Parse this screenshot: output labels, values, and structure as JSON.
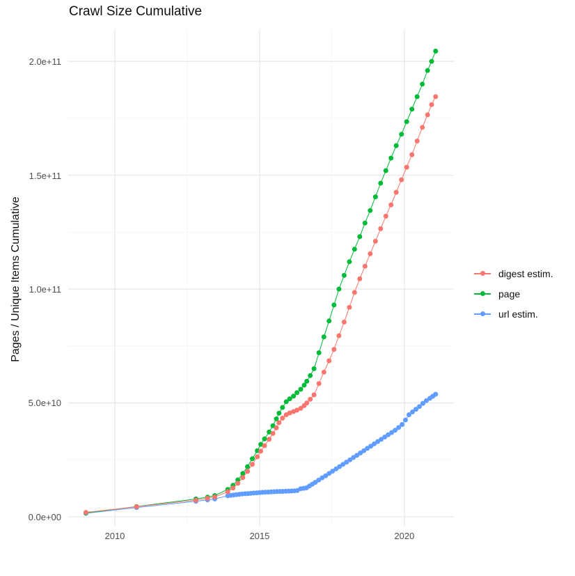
{
  "chart_data": {
    "type": "scatter",
    "title": "Crawl Size Cumulative",
    "xlabel": "",
    "ylabel": "Pages / Unique Items Cumulative",
    "legend_position": "right",
    "grid": true,
    "value_unit": "1e9 (values below are in billions; axis shows scientific notation)",
    "x_domain": [
      2008.39,
      2021.71
    ],
    "y_domain_e9": [
      -4.0,
      214.1
    ],
    "x_ticks": [
      {
        "value": 2010,
        "label": "2010"
      },
      {
        "value": 2015,
        "label": "2015"
      },
      {
        "value": 2020,
        "label": "2020"
      }
    ],
    "x_minor": [
      2012.5,
      2017.5
    ],
    "y_ticks": [
      {
        "value": 0,
        "label": "0.0e+00"
      },
      {
        "value": 50,
        "label": "5.0e+10"
      },
      {
        "value": 100,
        "label": "1.0e+11"
      },
      {
        "value": 150,
        "label": "1.5e+11"
      },
      {
        "value": 200,
        "label": "2.0e+11"
      }
    ],
    "y_minor": [
      25,
      75,
      125,
      175
    ],
    "colors": {
      "major_grid": "#e6e6e6",
      "minor_grid": "#f2f2f2",
      "axis_text": "#4d4d4d",
      "title_text": "#111111"
    },
    "series": [
      {
        "name": "digest estim.",
        "color": "#F8766D",
        "points": [
          [
            2009.0,
            1.9
          ],
          [
            2010.75,
            4.4
          ],
          [
            2012.8,
            7.3
          ],
          [
            2013.2,
            8.1
          ],
          [
            2013.45,
            8.7
          ],
          [
            2013.9,
            11.0
          ],
          [
            2014.08,
            12.6
          ],
          [
            2014.25,
            14.7
          ],
          [
            2014.42,
            17.2
          ],
          [
            2014.58,
            19.9
          ],
          [
            2014.75,
            23.0
          ],
          [
            2014.92,
            26.3
          ],
          [
            2015.04,
            28.8
          ],
          [
            2015.17,
            31.2
          ],
          [
            2015.33,
            34.0
          ],
          [
            2015.46,
            36.6
          ],
          [
            2015.58,
            39.0
          ],
          [
            2015.67,
            41.3
          ],
          [
            2015.79,
            43.3
          ],
          [
            2015.92,
            44.8
          ],
          [
            2016.04,
            45.6
          ],
          [
            2016.17,
            46.2
          ],
          [
            2016.29,
            46.8
          ],
          [
            2016.42,
            47.6
          ],
          [
            2016.54,
            48.8
          ],
          [
            2016.63,
            50.0
          ],
          [
            2016.75,
            51.6
          ],
          [
            2016.88,
            53.5
          ],
          [
            2017.05,
            58.5
          ],
          [
            2017.22,
            63.5
          ],
          [
            2017.4,
            68.5
          ],
          [
            2017.57,
            73.5
          ],
          [
            2017.74,
            79.5
          ],
          [
            2017.92,
            85.5
          ],
          [
            2018.1,
            92
          ],
          [
            2018.28,
            98.5
          ],
          [
            2018.46,
            104.5
          ],
          [
            2018.64,
            110
          ],
          [
            2018.82,
            115.5
          ],
          [
            2019.0,
            121
          ],
          [
            2019.18,
            126.5
          ],
          [
            2019.36,
            132
          ],
          [
            2019.54,
            137
          ],
          [
            2019.72,
            142.5
          ],
          [
            2019.9,
            148
          ],
          [
            2020.08,
            153.5
          ],
          [
            2020.26,
            159
          ],
          [
            2020.44,
            165
          ],
          [
            2020.62,
            171
          ],
          [
            2020.8,
            176.5
          ],
          [
            2020.94,
            181
          ],
          [
            2021.08,
            184.5
          ]
        ]
      },
      {
        "name": "page",
        "color": "#00BA38",
        "points": [
          [
            2009.0,
            1.7
          ],
          [
            2010.75,
            4.5
          ],
          [
            2012.8,
            7.8
          ],
          [
            2013.2,
            8.6
          ],
          [
            2013.45,
            9.3
          ],
          [
            2013.9,
            12.0
          ],
          [
            2014.08,
            13.8
          ],
          [
            2014.25,
            16.2
          ],
          [
            2014.42,
            19.0
          ],
          [
            2014.58,
            22.0
          ],
          [
            2014.75,
            25.5
          ],
          [
            2014.92,
            29.0
          ],
          [
            2015.04,
            31.8
          ],
          [
            2015.17,
            34.2
          ],
          [
            2015.33,
            37.2
          ],
          [
            2015.46,
            40.0
          ],
          [
            2015.58,
            43.0
          ],
          [
            2015.67,
            45.5
          ],
          [
            2015.79,
            48.0
          ],
          [
            2015.92,
            50.5
          ],
          [
            2016.04,
            51.8
          ],
          [
            2016.17,
            53.0
          ],
          [
            2016.29,
            54.5
          ],
          [
            2016.42,
            56.0
          ],
          [
            2016.54,
            57.8
          ],
          [
            2016.63,
            59.5
          ],
          [
            2016.75,
            62.0
          ],
          [
            2016.88,
            65.0
          ],
          [
            2017.05,
            72
          ],
          [
            2017.22,
            79
          ],
          [
            2017.4,
            86
          ],
          [
            2017.57,
            93
          ],
          [
            2017.74,
            100
          ],
          [
            2017.92,
            106
          ],
          [
            2018.1,
            112
          ],
          [
            2018.28,
            117.5
          ],
          [
            2018.46,
            123
          ],
          [
            2018.64,
            129
          ],
          [
            2018.82,
            134.5
          ],
          [
            2019.0,
            140.5
          ],
          [
            2019.18,
            146.5
          ],
          [
            2019.36,
            152
          ],
          [
            2019.54,
            157.5
          ],
          [
            2019.72,
            163
          ],
          [
            2019.9,
            168
          ],
          [
            2020.08,
            173.5
          ],
          [
            2020.26,
            179
          ],
          [
            2020.44,
            184.5
          ],
          [
            2020.62,
            190
          ],
          [
            2020.8,
            196
          ],
          [
            2020.94,
            200
          ],
          [
            2021.08,
            204.5
          ]
        ]
      },
      {
        "name": "url estim.",
        "color": "#619CFF",
        "points": [
          [
            2009.0,
            1.5
          ],
          [
            2010.75,
            4.0
          ],
          [
            2012.8,
            6.8
          ],
          [
            2013.2,
            7.4
          ],
          [
            2013.45,
            7.8
          ],
          [
            2013.9,
            9.2
          ],
          [
            2014.0,
            9.4
          ],
          [
            2014.1,
            9.55
          ],
          [
            2014.2,
            9.7
          ],
          [
            2014.3,
            9.85
          ],
          [
            2014.4,
            10.0
          ],
          [
            2014.5,
            10.1
          ],
          [
            2014.6,
            10.2
          ],
          [
            2014.7,
            10.3
          ],
          [
            2014.8,
            10.4
          ],
          [
            2014.9,
            10.5
          ],
          [
            2015.0,
            10.6
          ],
          [
            2015.1,
            10.7
          ],
          [
            2015.2,
            10.8
          ],
          [
            2015.3,
            10.85
          ],
          [
            2015.4,
            10.9
          ],
          [
            2015.5,
            11.0
          ],
          [
            2015.6,
            11.05
          ],
          [
            2015.7,
            11.1
          ],
          [
            2015.8,
            11.15
          ],
          [
            2015.9,
            11.2
          ],
          [
            2016.0,
            11.25
          ],
          [
            2016.1,
            11.3
          ],
          [
            2016.2,
            11.4
          ],
          [
            2016.3,
            11.5
          ],
          [
            2016.42,
            12.3
          ],
          [
            2016.52,
            12.5
          ],
          [
            2016.62,
            12.7
          ],
          [
            2016.72,
            13.5
          ],
          [
            2016.82,
            14.3
          ],
          [
            2016.92,
            15.1
          ],
          [
            2017.04,
            16.1
          ],
          [
            2017.16,
            17.1
          ],
          [
            2017.28,
            18.0
          ],
          [
            2017.4,
            19.0
          ],
          [
            2017.52,
            20.0
          ],
          [
            2017.64,
            21.0
          ],
          [
            2017.76,
            22.0
          ],
          [
            2017.88,
            23.0
          ],
          [
            2018.0,
            24.0
          ],
          [
            2018.12,
            25.0
          ],
          [
            2018.24,
            26.0
          ],
          [
            2018.36,
            27.0
          ],
          [
            2018.48,
            28.0
          ],
          [
            2018.6,
            29.0
          ],
          [
            2018.72,
            30.0
          ],
          [
            2018.84,
            31.0
          ],
          [
            2018.96,
            32.0
          ],
          [
            2019.08,
            33.0
          ],
          [
            2019.2,
            34.0
          ],
          [
            2019.32,
            35.0
          ],
          [
            2019.44,
            36.0
          ],
          [
            2019.56,
            37.0
          ],
          [
            2019.68,
            38.0
          ],
          [
            2019.8,
            39.2
          ],
          [
            2019.92,
            40.5
          ],
          [
            2020.04,
            42.5
          ],
          [
            2020.16,
            44.8
          ],
          [
            2020.28,
            46.0
          ],
          [
            2020.4,
            47.2
          ],
          [
            2020.52,
            48.4
          ],
          [
            2020.64,
            49.8
          ],
          [
            2020.76,
            51.0
          ],
          [
            2020.88,
            52.0
          ],
          [
            2020.98,
            52.9
          ],
          [
            2021.08,
            53.8
          ]
        ]
      }
    ]
  }
}
